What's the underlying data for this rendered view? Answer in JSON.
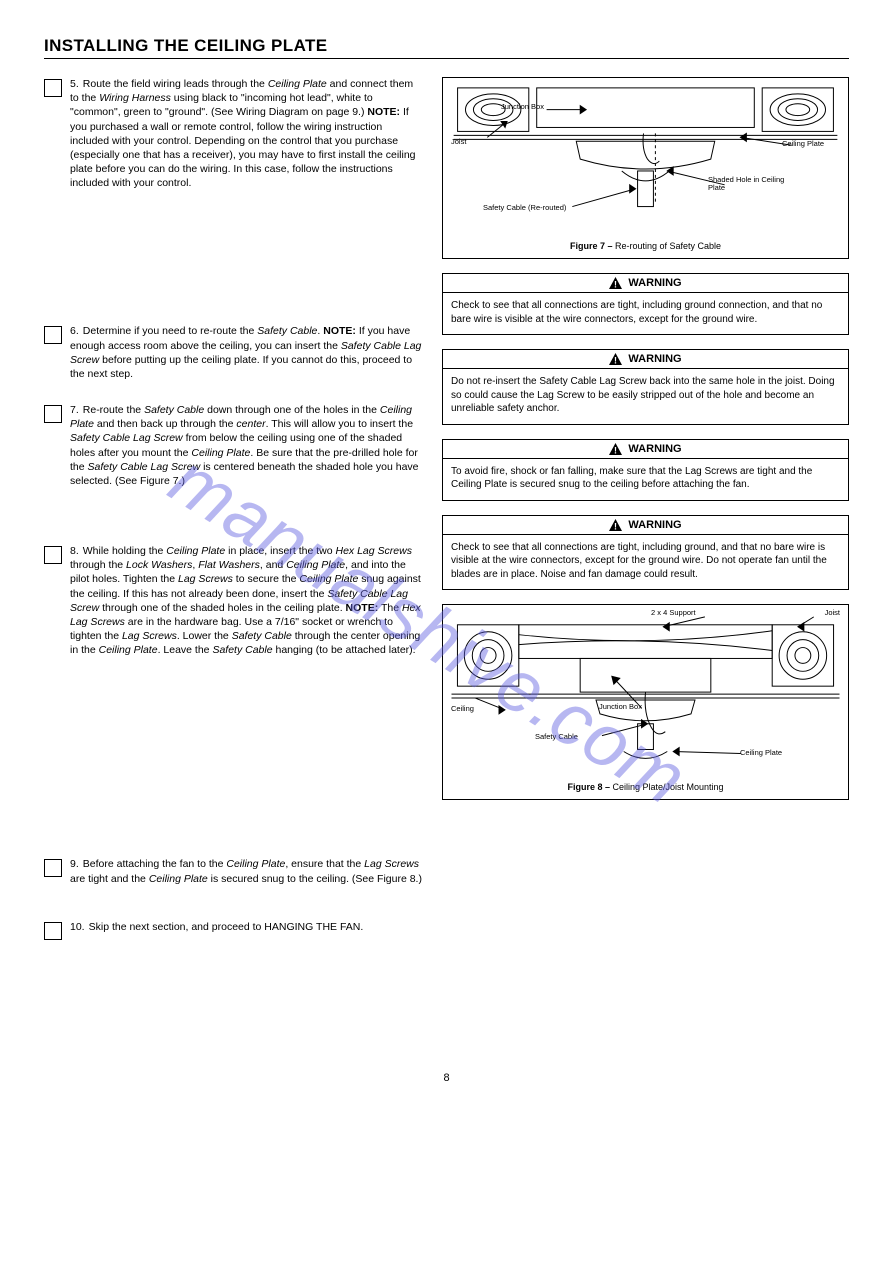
{
  "section_title": "INSTALLING THE CEILING PLATE",
  "page_number": "8",
  "steps": [
    {
      "num": "5.",
      "text": "Route the field wiring leads through the <em>Ceiling Plate</em> and connect them to the <em>Wiring Harness</em> using black to \"incoming hot lead\", white to \"common\", green to \"ground\". (See Wiring Diagram on page 9.) <span class=\"step-note\">NOTE:</span> If you purchased a wall or remote control, follow the wiring instruction included with your control. Depending on the control that you purchase (especially one that has a receiver), you may have to first install the ceiling plate before you can do the wiring. In this case, follow the instructions included with your control."
    },
    {
      "num": "6.",
      "text": "Determine if you need to re-route the <em>Safety Cable</em>. <span class=\"step-note\">NOTE:</span> If you have enough access room above the ceiling, you can insert the <em>Safety Cable Lag Screw</em> before putting up the ceiling plate. If you cannot do this, proceed to the next step."
    },
    {
      "num": "7.",
      "text": "Re-route the <em>Safety Cable</em> down through one of the holes in the <em>Ceiling Plate</em> and then back up through the <em>center</em>. This will allow you to insert the <em>Safety Cable Lag Screw</em> from below the ceiling using one of the shaded holes after you mount the <em>Ceiling Plate</em>. Be sure that the pre-drilled hole for the <em>Safety Cable Lag Screw</em> is centered beneath the shaded hole you have selected. (See Figure 7.)"
    },
    {
      "num": "8.",
      "text": "While holding the <em>Ceiling Plate</em> in place, insert the two <em>Hex Lag Screws</em> through the <em>Lock Washers</em>, <em>Flat Washers</em>, and <em>Ceiling Plate</em>, and into the pilot holes. Tighten the <em>Lag Screws</em> to secure the <em>Ceiling Plate</em> snug against the ceiling. If this has not already been done, insert the <em>Safety Cable Lag Screw</em> through one of the shaded holes in the ceiling plate. <span class=\"step-note\">NOTE:</span> The <em>Hex Lag Screws</em> are in the hardware bag. Use a 7/16\" socket or wrench to tighten the <em>Lag Screws</em>. Lower the <em>Safety Cable</em> through the center opening in the <em>Ceiling Plate</em>. Leave the <em>Safety Cable</em> hanging (to be attached later)."
    },
    {
      "num": "9.",
      "text": "Before attaching the fan to the <em>Ceiling Plate</em>, ensure that the <em>Lag Screws</em> are tight and the <em>Ceiling Plate</em> is secured snug to the ceiling. (See Figure 8.)"
    },
    {
      "num": "10.",
      "text": "Skip the next section, and proceed to HANGING THE FAN."
    }
  ],
  "warnings": [
    {
      "title": "WARNING",
      "body": "Check to see that all connections are tight, including ground connection, and that no bare wire is visible at the wire connectors, except for the ground wire."
    },
    {
      "title": "WARNING",
      "body": "Do not re-insert the Safety Cable Lag Screw back into the same hole in the joist. Doing so could cause the Lag Screw to be easily stripped out of the hole and become an unreliable safety anchor."
    },
    {
      "title": "WARNING",
      "body": "To avoid fire, shock or fan falling, make sure that the Lag Screws are tight and the Ceiling Plate is secured snug to the ceiling before attaching the fan."
    },
    {
      "title": "WARNING",
      "body": "Check to see that all connections are tight, including ground, and that no bare wire is visible at the wire connectors, except for the ground wire. Do not operate fan until the blades are in place. Noise and fan damage could result."
    }
  ],
  "figure1": {
    "caption_prefix": "Figure 7 – ",
    "caption": "Re-routing of Safety Cable",
    "labels": {
      "junction_box": "Junction Box",
      "ceiling_plate": "Ceiling Plate",
      "shaded_hole": "Shaded Hole in Ceiling Plate",
      "safety_cable": "Safety Cable (Re-routed)",
      "joist": "Joist"
    }
  },
  "figure2": {
    "caption_prefix": "Figure 8 – ",
    "caption": "Ceiling Plate/Joist Mounting",
    "labels": {
      "support": "2 x 4 Support",
      "joist": "Joist",
      "junction_box": "Junction Box",
      "ceiling": "Ceiling",
      "safety_cable": "Safety Cable",
      "ceiling_plate": "Ceiling Plate"
    }
  },
  "colors": {
    "watermark": "#6060e1"
  }
}
